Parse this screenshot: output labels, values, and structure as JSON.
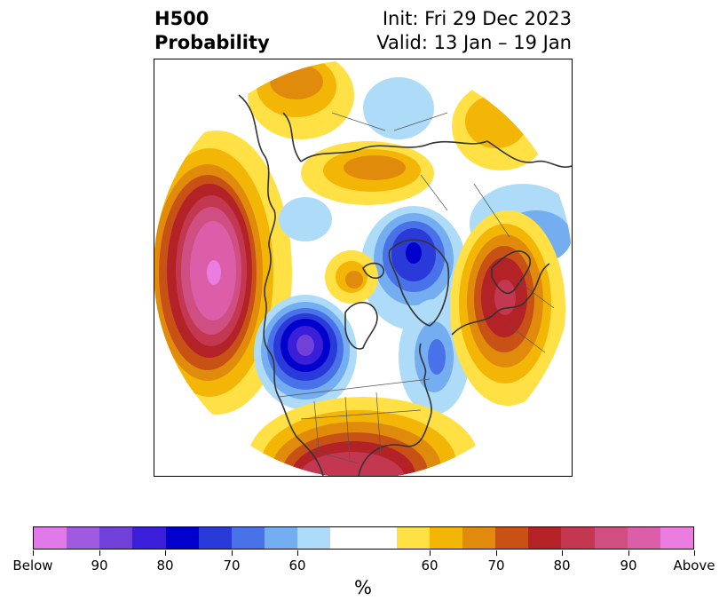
{
  "header": {
    "variable": "H500",
    "product": "Probability",
    "init": "Init: Fri 29 Dec 2023",
    "valid": "Valid: 13 Jan – 19 Jan"
  },
  "map": {
    "projection": "north-polar-stereographic"
  },
  "colorbar": {
    "unit": "%",
    "below_colors": [
      "#e07ae8",
      "#a05ae0",
      "#7040d8",
      "#3a1ed8",
      "#0000cc",
      "#2a3ad8",
      "#4a72e8",
      "#74aef0",
      "#aedcf8"
    ],
    "neutral_color": "#ffffff",
    "above_colors": [
      "#ffe045",
      "#f3b607",
      "#e08b0c",
      "#c85216",
      "#b32227",
      "#c43750",
      "#cf4f82",
      "#dd5ea8",
      "#ea7ddf"
    ],
    "tick_labels": [
      "Below",
      "90",
      "80",
      "70",
      "60",
      "60",
      "70",
      "80",
      "90",
      "Above"
    ]
  }
}
